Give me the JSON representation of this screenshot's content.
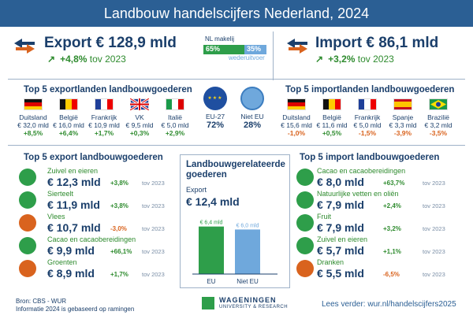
{
  "title": "Landbouw handelscijfers Nederland, 2024",
  "export": {
    "headline": "Export € 128,9 mld",
    "growth": "+4,8%",
    "tov": "tov 2023",
    "share": {
      "label": "NL makelij",
      "nl_pct": "65%",
      "wv_pct": "35%",
      "sub": "wederuitvoer",
      "nl_fraction": 0.65
    },
    "countries_title": "Top 5 exportlanden landbouwgoederen",
    "countries": [
      {
        "name": "Duitsland",
        "value": "€ 32,0 mld",
        "growth": "+8,5%"
      },
      {
        "name": "België",
        "value": "€ 16,0 mld",
        "growth": "+6,4%"
      },
      {
        "name": "Frankrijk",
        "value": "€ 10,9 mld",
        "growth": "+1,7%"
      },
      {
        "name": "VK",
        "value": "€ 9,5 mld",
        "growth": "+0,3%"
      },
      {
        "name": "Italië",
        "value": "€ 5,0 mld",
        "growth": "+2,9%"
      }
    ],
    "eu_label": "EU-27",
    "eu_pct": "72%",
    "non_eu_label": "Niet EU",
    "non_eu_pct": "28%",
    "products_title": "Top 5 export landbouwgoederen",
    "products": [
      {
        "label": "Zuivel en eieren",
        "value": "€ 12,3 mld",
        "growth": "+3,8%",
        "tov": "tov 2023",
        "icon": "milk-bottle-icon"
      },
      {
        "label": "Sierteelt",
        "value": "€ 11,9 mld",
        "growth": "+3,8%",
        "tov": "tov 2023",
        "icon": "flower-icon"
      },
      {
        "label": "Vlees",
        "value": "€ 10,7 mld",
        "growth": "-3,0%",
        "tov": "tov 2023",
        "icon": "meat-icon"
      },
      {
        "label": "Cacao en cacaobereidingen",
        "value": "€ 9,9 mld",
        "growth": "+66,1%",
        "tov": "tov 2023",
        "icon": "cacao-icon"
      },
      {
        "label": "Groenten",
        "value": "€ 8,9 mld",
        "growth": "+1,7%",
        "tov": "tov 2023",
        "icon": "tomato-icon"
      }
    ]
  },
  "import": {
    "headline": "Import € 86,1 mld",
    "growth": "+3,2%",
    "tov": "tov 2023",
    "countries_title": "Top 5 importlanden landbouwgoederen",
    "countries": [
      {
        "name": "Duitsland",
        "value": "€ 15,6 mld",
        "growth": "-1,0%"
      },
      {
        "name": "België",
        "value": "€ 11,6 mld",
        "growth": "+0,5%"
      },
      {
        "name": "Frankrijk",
        "value": "€ 5,0 mld",
        "growth": "-1,5%"
      },
      {
        "name": "Spanje",
        "value": "€ 3,3 mld",
        "growth": "-3,9%"
      },
      {
        "name": "Brazilië",
        "value": "€ 3,2 mld",
        "growth": "-3,5%"
      }
    ],
    "products_title": "Top 5 import landbouwgoederen",
    "products": [
      {
        "label": "Cacao en cacaobereidingen",
        "value": "€ 8,0 mld",
        "growth": "+63,7%",
        "tov": "tov 2023",
        "icon": "cacao-icon"
      },
      {
        "label": "Natuurlijke vetten en oliën",
        "value": "€ 7,9 mld",
        "growth": "+2,4%",
        "tov": "tov 2023",
        "icon": "oil-drop-icon"
      },
      {
        "label": "Fruit",
        "value": "€ 7,9 mld",
        "growth": "+3,2%",
        "tov": "tov 2023",
        "icon": "apple-icon"
      },
      {
        "label": "Zuivel en eieren",
        "value": "€ 5,7 mld",
        "growth": "+1,1%",
        "tov": "tov 2023",
        "icon": "milk-bottle-icon"
      },
      {
        "label": "Dranken",
        "value": "€ 5,5 mld",
        "growth": "-6,5%",
        "tov": "tov 2023",
        "icon": "bottle-icon"
      }
    ]
  },
  "related": {
    "title_line1": "Landbouwgerelateerde",
    "title_line2": "goederen",
    "label": "Export",
    "value": "€ 12,4 mld"
  },
  "chart_data": {
    "type": "bar",
    "categories": [
      "EU",
      "Niet EU"
    ],
    "values": [
      6.4,
      6.0
    ],
    "data_labels": [
      "€ 6,4 mld",
      "€ 6,0 mld"
    ],
    "ylim": [
      0,
      7
    ],
    "colors": [
      "#2e9e4a",
      "#6fa8dc"
    ]
  },
  "footer": {
    "source": "Bron: CBS - WUR",
    "note": "Informatie 2024 is gebaseerd op ramingen",
    "logo_name": "WAGENINGEN",
    "logo_sub": "UNIVERSITY & RESEARCH",
    "read_more": "Lees verder: wur.nl/handelscijfers2025"
  },
  "colors": {
    "header": "#2b5f94",
    "positive": "#2e8b2e",
    "negative": "#d9631e",
    "text": "#1b3f6b"
  }
}
